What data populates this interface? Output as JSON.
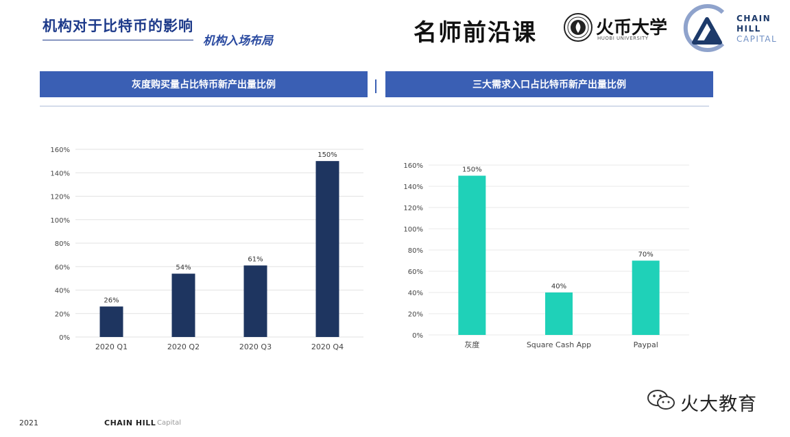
{
  "header": {
    "title": "机构对于比特币的影响",
    "subtitle": "机构入场布局",
    "brand": "名师前沿课",
    "university": "火币大学",
    "university_en": "HUOBI UNIVERSITY",
    "logo_lines": [
      "CHAIN",
      "HILL",
      "CAPITAL"
    ]
  },
  "banners": {
    "left": "灰度购买量占比特币新产出量比例",
    "right": "三大需求入口占比特币新产出量比例"
  },
  "footer": {
    "year": "2021",
    "brand": "CHAIN HILL",
    "brand_sub": "Capital"
  },
  "watermark": {
    "text": "火大教育",
    "icon": "wechat-icon"
  },
  "chart_data": [
    {
      "type": "bar",
      "categories": [
        "2020 Q1",
        "2020 Q2",
        "2020 Q3",
        "2020 Q4"
      ],
      "values": [
        26,
        54,
        61,
        150
      ],
      "value_labels": [
        "26%",
        "54%",
        "61%",
        "150%"
      ],
      "y_ticks": [
        "0%",
        "20%",
        "40%",
        "60%",
        "80%",
        "100%",
        "120%",
        "140%",
        "160%"
      ],
      "ylim": [
        0,
        160
      ],
      "grid": true,
      "color": "#1e3560"
    },
    {
      "type": "bar",
      "categories": [
        "灰度",
        "Square Cash App",
        "Paypal"
      ],
      "values": [
        150,
        40,
        70
      ],
      "value_labels": [
        "150%",
        "40%",
        "70%"
      ],
      "y_ticks": [
        "0%",
        "20%",
        "40%",
        "60%",
        "80%",
        "100%",
        "120%",
        "140%",
        "160%"
      ],
      "ylim": [
        0,
        160
      ],
      "grid": true,
      "color": "#1fd1b8"
    }
  ]
}
